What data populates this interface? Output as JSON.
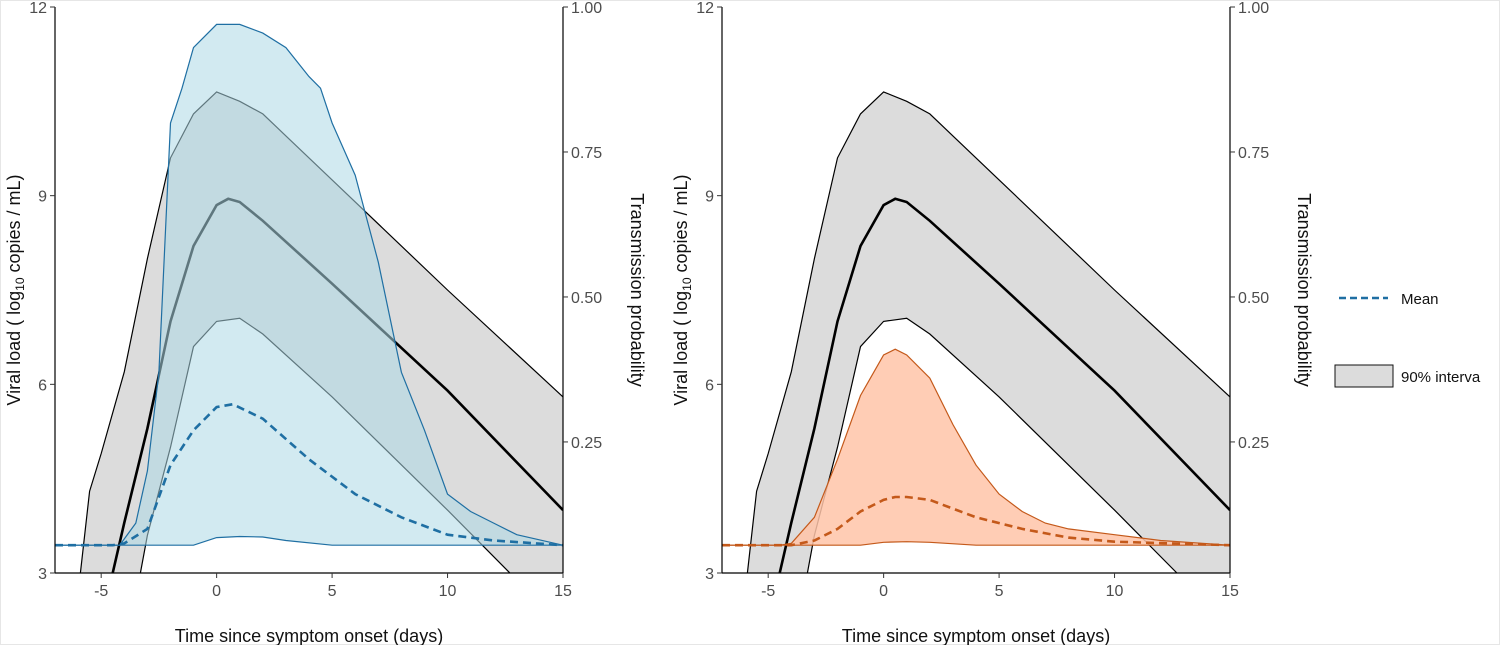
{
  "chart_data": [
    {
      "type": "area",
      "xlabel": "Time since symptom onset (days)",
      "ylabel": {
        "prefix": "Viral load ( log",
        "sub": "10",
        "suffix": " copies / mL)"
      },
      "y2label": "Transmission probability",
      "xlim": [
        -7,
        15
      ],
      "ylim": [
        3,
        12
      ],
      "y2lim": [
        0.024,
        1.0
      ],
      "xticks": [
        "-5",
        "0",
        "5",
        "10",
        "15"
      ],
      "yticks": [
        "3",
        "6",
        "9",
        "12"
      ],
      "y2ticks": [
        "0.25",
        "0.50",
        "0.75",
        "1.00"
      ],
      "grid": false,
      "viral_load": {
        "color": "#000000",
        "band_fill": "#dcdcdc",
        "median": {
          "x": [
            -4.5,
            -4,
            -3,
            -2,
            -1,
            0,
            0.5,
            1,
            2,
            5,
            10,
            15
          ],
          "y": [
            3,
            3.8,
            5.3,
            7,
            8.2,
            8.85,
            8.95,
            8.9,
            8.6,
            7.6,
            5.9,
            4.0
          ]
        },
        "upper": {
          "x": [
            -5.9,
            -5.5,
            -5,
            -4,
            -3,
            -2,
            -1,
            0,
            1,
            2,
            3,
            5,
            10,
            15
          ],
          "y": [
            3,
            4.3,
            4.9,
            6.2,
            8,
            9.6,
            10.3,
            10.65,
            10.5,
            10.3,
            9.95,
            9.25,
            7.5,
            5.8
          ]
        },
        "lower": {
          "x": [
            -3.3,
            -3,
            -2,
            -1,
            0,
            1,
            2,
            5,
            10,
            12.7
          ],
          "y": [
            3,
            3.6,
            5,
            6.6,
            7,
            7.05,
            6.8,
            5.8,
            4.0,
            3
          ]
        }
      },
      "transmission": {
        "color": "#1f6fa3",
        "band_fill": "#add8e6",
        "mean": {
          "x": [
            -7,
            -4.5,
            -4,
            -3,
            -2,
            -1,
            0,
            0.7,
            2,
            4,
            6,
            8,
            10,
            12,
            15
          ],
          "y": [
            0.072,
            0.072,
            0.075,
            0.1,
            0.21,
            0.27,
            0.31,
            0.315,
            0.29,
            0.22,
            0.16,
            0.12,
            0.09,
            0.08,
            0.072
          ]
        },
        "upper": {
          "x": [
            -7,
            -4.2,
            -3.5,
            -3,
            -2.5,
            -2,
            -1.5,
            -1,
            0,
            1,
            2,
            3,
            4,
            4.5,
            5,
            6,
            7,
            8,
            9,
            10,
            11,
            12,
            13,
            15
          ],
          "y": [
            0.072,
            0.072,
            0.11,
            0.2,
            0.37,
            0.8,
            0.86,
            0.93,
            0.97,
            0.97,
            0.955,
            0.93,
            0.88,
            0.86,
            0.8,
            0.71,
            0.56,
            0.37,
            0.27,
            0.16,
            0.13,
            0.11,
            0.09,
            0.072
          ]
        },
        "lower": {
          "x": [
            -7,
            -1,
            0,
            1,
            2,
            3,
            5,
            15
          ],
          "y": [
            0.072,
            0.072,
            0.085,
            0.087,
            0.086,
            0.08,
            0.072,
            0.072
          ]
        }
      }
    },
    {
      "type": "area",
      "xlabel": "Time since symptom onset (days)",
      "ylabel": {
        "prefix": "Viral load ( log",
        "sub": "10",
        "suffix": " copies / mL)"
      },
      "y2label": "Transmission probability",
      "xlim": [
        -7,
        15
      ],
      "ylim": [
        3,
        12
      ],
      "y2lim": [
        0.024,
        1.0
      ],
      "xticks": [
        "-5",
        "0",
        "5",
        "10",
        "15"
      ],
      "yticks": [
        "3",
        "6",
        "9",
        "12"
      ],
      "y2ticks": [
        "0.25",
        "0.50",
        "0.75",
        "1.00"
      ],
      "grid": false,
      "viral_load": {
        "color": "#000000",
        "band_fill": "#dcdcdc",
        "median": {
          "x": [
            -4.5,
            -4,
            -3,
            -2,
            -1,
            0,
            0.5,
            1,
            2,
            5,
            10,
            15
          ],
          "y": [
            3,
            3.8,
            5.3,
            7,
            8.2,
            8.85,
            8.95,
            8.9,
            8.6,
            7.6,
            5.9,
            4.0
          ]
        },
        "upper": {
          "x": [
            -5.9,
            -5.5,
            -5,
            -4,
            -3,
            -2,
            -1,
            0,
            1,
            2,
            3,
            5,
            10,
            15
          ],
          "y": [
            3,
            4.3,
            4.9,
            6.2,
            8,
            9.6,
            10.3,
            10.65,
            10.5,
            10.3,
            9.95,
            9.25,
            7.5,
            5.8
          ]
        },
        "lower": {
          "x": [
            -3.3,
            -3,
            -2,
            -1,
            0,
            1,
            2,
            5,
            10,
            12.7
          ],
          "y": [
            3,
            3.6,
            5,
            6.6,
            7,
            7.05,
            6.8,
            5.8,
            4.0,
            3
          ]
        }
      },
      "transmission": {
        "color": "#c4591a",
        "band_fill": "#ffc4a8",
        "mean": {
          "x": [
            -7,
            -4,
            -3,
            -2,
            -1,
            0,
            0.5,
            1,
            2,
            4,
            6,
            8,
            10,
            15
          ],
          "y": [
            0.072,
            0.072,
            0.08,
            0.1,
            0.13,
            0.15,
            0.155,
            0.155,
            0.15,
            0.12,
            0.1,
            0.085,
            0.078,
            0.072
          ]
        },
        "upper": {
          "x": [
            -7,
            -4.5,
            -4,
            -3,
            -2,
            -1,
            0,
            0.5,
            1,
            2,
            3,
            4,
            5,
            6,
            7,
            8,
            10,
            12,
            15
          ],
          "y": [
            0.072,
            0.072,
            0.075,
            0.12,
            0.22,
            0.33,
            0.4,
            0.41,
            0.4,
            0.36,
            0.28,
            0.21,
            0.16,
            0.13,
            0.11,
            0.1,
            0.09,
            0.08,
            0.072
          ]
        },
        "lower": {
          "x": [
            -7,
            -1,
            0,
            1,
            2,
            4,
            15
          ],
          "y": [
            0.072,
            0.072,
            0.077,
            0.078,
            0.077,
            0.072,
            0.072
          ]
        }
      }
    }
  ],
  "legend": {
    "placement": "right",
    "items": [
      {
        "label": "Mean",
        "kind": "dashed-line",
        "color": "#1f6fa3"
      },
      {
        "label": "90% interva",
        "kind": "box",
        "color": "#dcdcdc"
      }
    ]
  }
}
